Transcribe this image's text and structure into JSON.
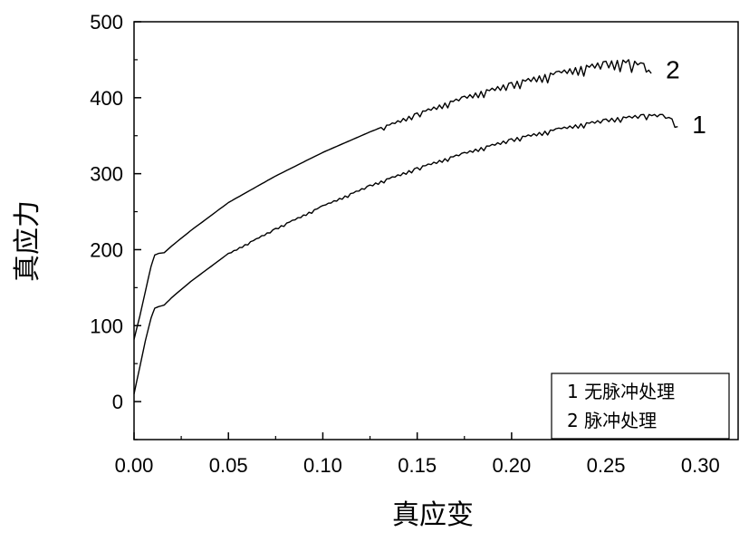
{
  "chart_data": {
    "type": "line",
    "xlabel": "真应变",
    "ylabel": "真应力",
    "xlim": [
      0.0,
      0.32
    ],
    "ylim": [
      -50,
      500
    ],
    "x_ticks": [
      "0.00",
      "0.05",
      "0.10",
      "0.15",
      "0.20",
      "0.25",
      "0.30"
    ],
    "x_tick_values": [
      0.0,
      0.05,
      0.1,
      0.15,
      0.2,
      0.25,
      0.3
    ],
    "y_ticks": [
      "0",
      "100",
      "200",
      "300",
      "400",
      "500"
    ],
    "y_tick_values": [
      0,
      100,
      200,
      300,
      400,
      500
    ],
    "grid": false,
    "legend_position": "bottom-right",
    "legend": [
      "1 无脉冲处理",
      "2 脉冲处理"
    ],
    "series": [
      {
        "name": "1",
        "legend_text": "1 无脉冲处理",
        "x": [
          0.0,
          0.003,
          0.006,
          0.009,
          0.011,
          0.013,
          0.016,
          0.02,
          0.03,
          0.05,
          0.075,
          0.1,
          0.125,
          0.15,
          0.175,
          0.2,
          0.225,
          0.25,
          0.27,
          0.28,
          0.285,
          0.288
        ],
        "y": [
          10,
          45,
          80,
          110,
          123,
          125,
          127,
          137,
          158,
          195,
          228,
          258,
          285,
          308,
          328,
          346,
          360,
          372,
          378,
          378,
          372,
          362
        ]
      },
      {
        "name": "2",
        "legend_text": "2 脉冲处理",
        "x": [
          0.0,
          0.003,
          0.006,
          0.009,
          0.011,
          0.013,
          0.016,
          0.02,
          0.03,
          0.05,
          0.075,
          0.1,
          0.125,
          0.15,
          0.175,
          0.2,
          0.225,
          0.25,
          0.262,
          0.27,
          0.274
        ],
        "y": [
          82,
          112,
          145,
          178,
          193,
          195,
          196,
          205,
          225,
          262,
          297,
          328,
          355,
          380,
          402,
          420,
          435,
          448,
          450,
          445,
          432
        ]
      }
    ]
  }
}
